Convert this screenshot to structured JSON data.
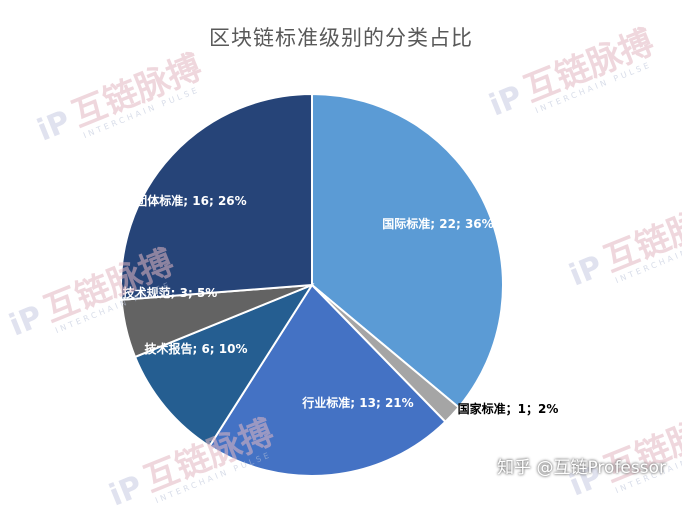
{
  "chart_data": {
    "type": "pie",
    "title": "区块链标准级别的分类占比",
    "slices": [
      {
        "name": "国际标准",
        "value": 22,
        "percent": "36%",
        "label": "国际标准; 22; 36%",
        "color": "#5b9bd5"
      },
      {
        "name": "国家标准",
        "value": 1,
        "percent": "2%",
        "label": "国家标准；1；2%",
        "color": "#a5a5a5"
      },
      {
        "name": "行业标准",
        "value": 13,
        "percent": "21%",
        "label": "行业标准; 13; 21%",
        "color": "#4472c4"
      },
      {
        "name": "技术报告",
        "value": 6,
        "percent": "10%",
        "label": "技术报告; 6; 10%",
        "color": "#255e91"
      },
      {
        "name": "技术规范",
        "value": 3,
        "percent": "5%",
        "label": "技术规范; 3; 5%",
        "color": "#636363"
      },
      {
        "name": "团体标准",
        "value": 16,
        "percent": "26%",
        "label": "团体标准; 16; 26%",
        "color": "#264478"
      }
    ]
  },
  "watermark": {
    "text": "互链脉搏",
    "subtext": "INTERCHAIN PULSE"
  },
  "footer": "知乎 @互链Professor"
}
